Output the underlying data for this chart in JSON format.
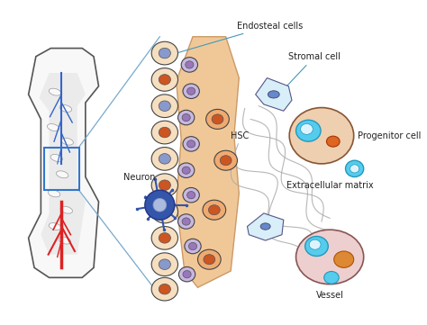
{
  "labels": {
    "endosteal_cells": "Endosteal cells",
    "stromal_cell": "Stromal cell",
    "hsc": "HSC",
    "progenitor_cell": "Progenitor cell",
    "neuron": "Neuron",
    "extracellular_matrix": "Extracellular matrix",
    "vessel": "Vessel"
  },
  "colors": {
    "bg_color": "#ffffff",
    "endosteal_outer": "#f5dfc0",
    "endosteal_nucleus_blue": "#8899cc",
    "endosteal_nucleus_orange": "#cc5522",
    "bone_outline": "#333333",
    "bone_fill": "#f0f0f0",
    "red_vessel": "#dd2222",
    "blue_vessel": "#3366cc",
    "stromal_fill": "#d0e8f0",
    "neuron_fill": "#4466aa",
    "cyan_cell": "#55ccee",
    "orange_nucleus": "#dd6622",
    "trabecular_fill": "#f2dfc0",
    "line_color": "#4499bb",
    "gray_line": "#aaaaaa",
    "text_color": "#222222"
  }
}
